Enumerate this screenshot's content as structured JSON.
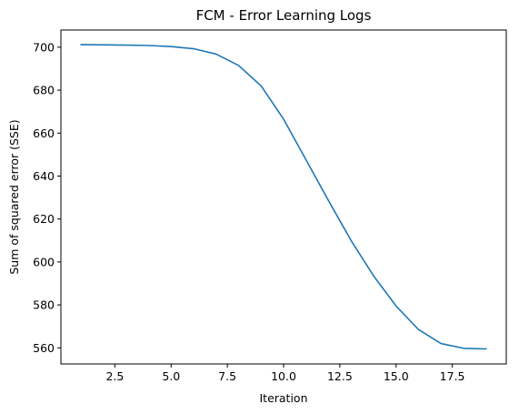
{
  "chart_data": {
    "type": "line",
    "title": "FCM - Error Learning Logs",
    "xlabel": "Iteration",
    "ylabel": "Sum of squared error (SSE)",
    "xlim": [
      0.1,
      19.9
    ],
    "ylim": [
      552.5,
      708
    ],
    "x_ticks": [
      2.5,
      5.0,
      7.5,
      10.0,
      12.5,
      15.0,
      17.5
    ],
    "x_tick_labels": [
      "2.5",
      "5.0",
      "7.5",
      "10.0",
      "12.5",
      "15.0",
      "17.5"
    ],
    "y_ticks": [
      560,
      580,
      600,
      620,
      640,
      660,
      680,
      700
    ],
    "y_tick_labels": [
      "560",
      "580",
      "600",
      "620",
      "640",
      "660",
      "680",
      "700"
    ],
    "grid": false,
    "colors": {
      "line": "#1f77b4",
      "axes": "#000000"
    },
    "series": [
      {
        "x": [
          1,
          2,
          3,
          4,
          5,
          6,
          7,
          8,
          9,
          10,
          11,
          12,
          13,
          14,
          15,
          16,
          17,
          18,
          19
        ],
        "y": [
          701.2,
          701.1,
          701.0,
          700.8,
          700.3,
          699.3,
          696.8,
          691.5,
          682.0,
          666.5,
          647.5,
          628.5,
          610.0,
          593.5,
          579.5,
          568.5,
          562.0,
          559.8,
          559.5
        ]
      }
    ]
  }
}
